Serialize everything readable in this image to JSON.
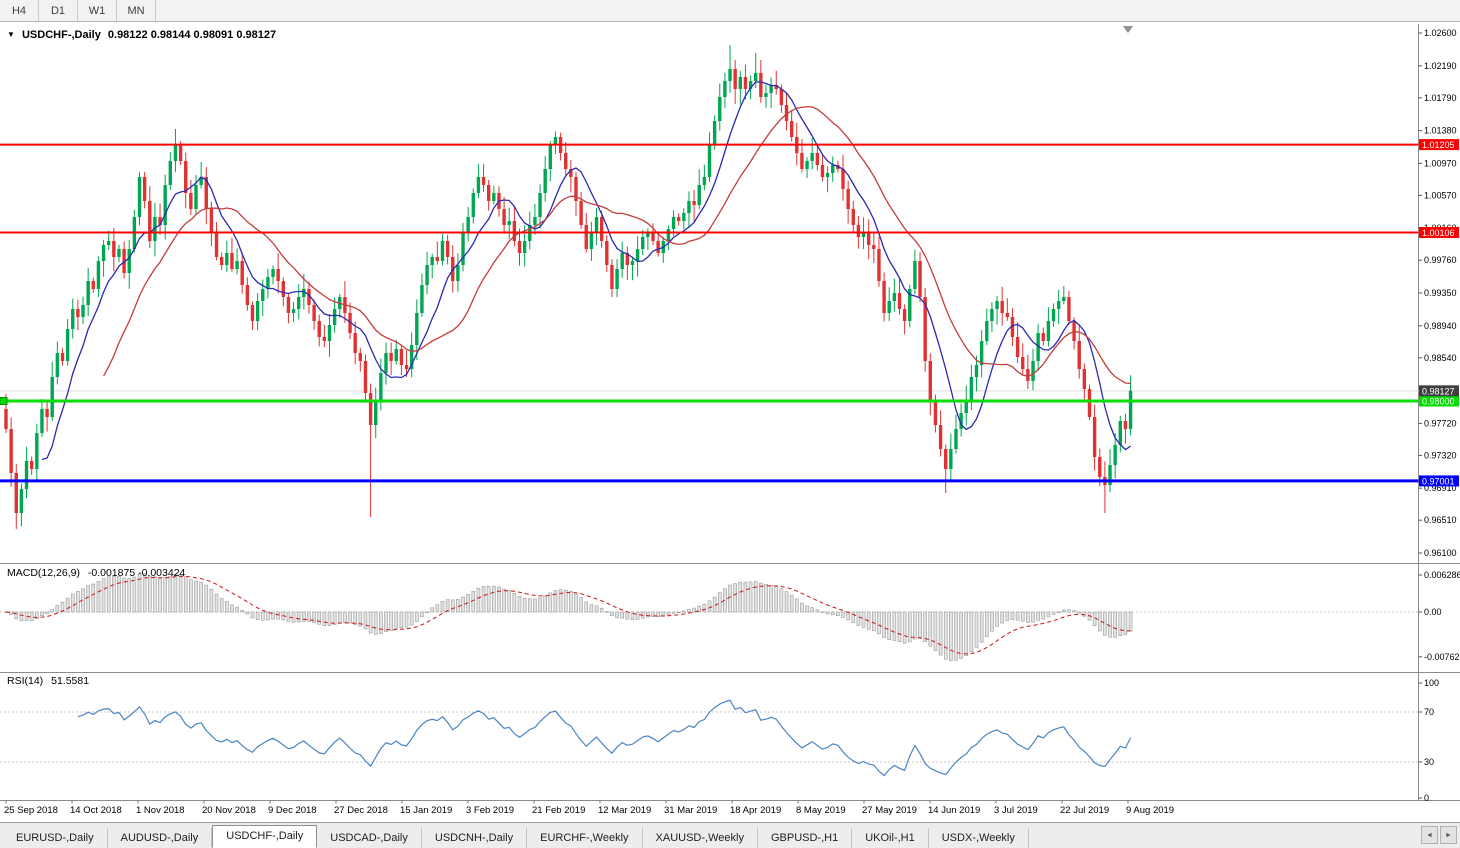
{
  "toolbar": {
    "timeframes": [
      "H4",
      "D1",
      "W1",
      "MN"
    ]
  },
  "icons": {
    "title_menu": "▼",
    "tab_scroll_left": "◄",
    "tab_scroll_right": "►"
  },
  "chart": {
    "symbol_period": "USDCHF-,Daily",
    "ohlc": "0.98122 0.98144 0.98091 0.98127",
    "open": "0.98122",
    "high": "0.98144",
    "low": "0.98091",
    "close": "0.98127"
  },
  "price_axis": {
    "ticks": [
      1.026,
      1.0219,
      1.0179,
      1.0138,
      1.0097,
      1.0057,
      1.0016,
      0.9976,
      0.9935,
      0.9894,
      0.9854,
      0.9772,
      0.9732,
      0.9691,
      0.9651,
      0.961
    ]
  },
  "current_price": {
    "value": 0.98127,
    "label": "0.98127"
  },
  "hlines": [
    {
      "value": 1.01205,
      "label": "1.01205",
      "color": "#FF0000",
      "width": 2,
      "anchor": false
    },
    {
      "value": 1.00106,
      "label": "1.00106",
      "color": "#FF0000",
      "width": 2,
      "anchor": false
    },
    {
      "value": 0.98,
      "label": "0.98000",
      "color": "#00DF00",
      "width": 3,
      "anchor": true
    },
    {
      "value": 0.97001,
      "label": "0.97001",
      "color": "#0000FF",
      "width": 3,
      "anchor": false
    }
  ],
  "macd": {
    "label": "MACD(12,26,9)",
    "values": "-0.001875 -0.003424",
    "axis_labels": [
      "0.006286",
      "0.00",
      "-0.00762"
    ],
    "fast": 12,
    "slow": 26,
    "signal": 9
  },
  "rsi": {
    "label": "RSI(14)",
    "value": "51.5581",
    "axis_labels": [
      100,
      70,
      30,
      0
    ],
    "levels": [
      70,
      30
    ],
    "period": 14
  },
  "chart_data": {
    "type": "candlestick",
    "symbol": "USDCHF",
    "timeframe": "Daily",
    "ylim": [
      0.961,
      1.026
    ],
    "x_labels": [
      "25 Sep 2018",
      "14 Oct 2018",
      "1 Nov 2018",
      "20 Nov 2018",
      "9 Dec 2018",
      "27 Dec 2018",
      "15 Jan 2019",
      "3 Feb 2019",
      "21 Feb 2019",
      "12 Mar 2019",
      "31 Mar 2019",
      "18 Apr 2019",
      "8 May 2019",
      "27 May 2019",
      "14 Jun 2019",
      "3 Jul 2019",
      "22 Jul 2019",
      "9 Aug 2019"
    ],
    "first_open": 0.979,
    "closes": [
      0.9765,
      0.971,
      0.966,
      0.969,
      0.9725,
      0.9715,
      0.976,
      0.979,
      0.978,
      0.983,
      0.986,
      0.985,
      0.989,
      0.9915,
      0.9905,
      0.992,
      0.995,
      0.994,
      0.9975,
      0.9995,
      1.0,
      0.998,
      0.999,
      0.996,
      0.999,
      1.003,
      1.008,
      1.005,
      1.0,
      1.003,
      1.002,
      1.007,
      1.01,
      1.012,
      1.01,
      1.006,
      1.004,
      1.007,
      1.008,
      1.004,
      1.001,
      0.998,
      0.997,
      0.9985,
      0.9965,
      0.9975,
      0.9945,
      0.992,
      0.99,
      0.9925,
      0.994,
      0.9955,
      0.9965,
      0.995,
      0.993,
      0.991,
      0.9915,
      0.993,
      0.994,
      0.992,
      0.99,
      0.988,
      0.9875,
      0.9895,
      0.9915,
      0.993,
      0.991,
      0.9885,
      0.986,
      0.985,
      0.981,
      0.977,
      0.98,
      0.9835,
      0.986,
      0.985,
      0.9865,
      0.9845,
      0.984,
      0.987,
      0.991,
      0.9945,
      0.997,
      0.998,
      0.9975,
      1.0,
      0.998,
      0.995,
      0.997,
      1.001,
      1.003,
      1.006,
      1.008,
      1.007,
      1.005,
      1.006,
      1.004,
      1.002,
      1.0025,
      1.0,
      0.9985,
      1.0,
      1.002,
      1.003,
      1.006,
      1.009,
      1.012,
      1.013,
      1.011,
      1.009,
      1.008,
      1.005,
      1.002,
      0.999,
      1.001,
      1.003,
      1.0,
      0.997,
      0.994,
      0.9965,
      0.9985,
      0.997,
      0.9975,
      0.999,
      1.0005,
      1.001,
      1.0,
      0.9985,
      1.0,
      1.0015,
      1.003,
      1.0025,
      1.0035,
      1.005,
      1.0045,
      1.007,
      1.008,
      1.012,
      1.015,
      1.018,
      1.02,
      1.0215,
      1.019,
      1.0205,
      1.019,
      1.02,
      1.021,
      1.018,
      1.0185,
      1.0195,
      1.019,
      1.017,
      1.015,
      1.013,
      1.011,
      1.009,
      1.01,
      1.011,
      1.0095,
      1.008,
      1.0085,
      1.0095,
      1.009,
      1.0065,
      1.004,
      1.002,
      1.0005,
      1.001,
      0.9995,
      0.999,
      0.995,
      0.991,
      0.9925,
      0.9935,
      0.9915,
      0.99,
      0.994,
      0.9975,
      0.993,
      0.985,
      0.98,
      0.977,
      0.974,
      0.9715,
      0.974,
      0.9765,
      0.9785,
      0.98,
      0.983,
      0.9845,
      0.9875,
      0.99,
      0.9915,
      0.9925,
      0.991,
      0.9905,
      0.988,
      0.9855,
      0.984,
      0.9825,
      0.985,
      0.9885,
      0.9875,
      0.99,
      0.9915,
      0.9925,
      0.993,
      0.99,
      0.9875,
      0.984,
      0.9815,
      0.978,
      0.973,
      0.9705,
      0.9695,
      0.972,
      0.9745,
      0.9775,
      0.9765,
      0.98127
    ],
    "wick_overrides": {
      "2": {
        "low": 0.964
      },
      "33": {
        "high": 1.014
      },
      "71": {
        "low": 0.9655
      },
      "107": {
        "high": 1.0137
      },
      "141": {
        "high": 1.0245
      },
      "146": {
        "high": 1.0235
      },
      "183": {
        "low": 0.9685
      },
      "214": {
        "low": 0.966
      }
    },
    "ma_fast_period": 8,
    "ma_slow_period": 20
  },
  "colors": {
    "up": "#00A651",
    "down": "#E03232",
    "ma_fast": "#2A2AB0",
    "ma_slow": "#C43C3C",
    "macd_fill": "#E2E2E2",
    "macd_stroke": "#9C9C9C",
    "macd_signal": "#CC1414",
    "rsi": "#4A84C4",
    "last_bg": "#404040",
    "grid": "#C8C8C8"
  },
  "tabs": [
    {
      "label": "EURUSD-,Daily",
      "active": false
    },
    {
      "label": "AUDUSD-,Daily",
      "active": false
    },
    {
      "label": "USDCHF-,Daily",
      "active": true
    },
    {
      "label": "USDCAD-,Daily",
      "active": false
    },
    {
      "label": "USDCNH-,Daily",
      "active": false
    },
    {
      "label": "EURCHF-,Weekly",
      "active": false
    },
    {
      "label": "XAUUSD-,Weekly",
      "active": false
    },
    {
      "label": "GBPUSD-,H1",
      "active": false
    },
    {
      "label": "UKOil-,H1",
      "active": false
    },
    {
      "label": "USDX-,Weekly",
      "active": false
    }
  ]
}
